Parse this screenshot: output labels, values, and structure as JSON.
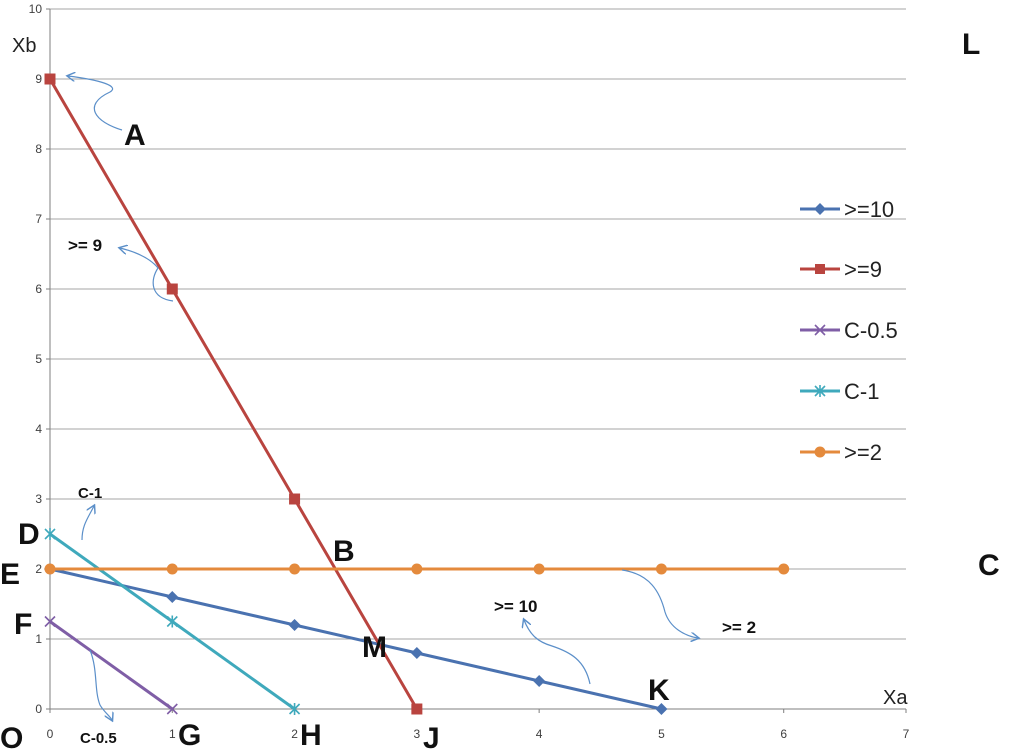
{
  "chart_data": {
    "type": "line",
    "xlabel": "Xa",
    "ylabel": "Xb",
    "xlim": [
      0,
      7
    ],
    "ylim": [
      0,
      10
    ],
    "xticks": [
      "0",
      "1",
      "2",
      "3",
      "4",
      "5",
      "6",
      "7"
    ],
    "yticks": [
      "0",
      "1",
      "2",
      "3",
      "4",
      "5",
      "6",
      "7",
      "8",
      "9",
      "10"
    ],
    "grid": "horizontal",
    "legend_position": "right",
    "series": [
      {
        "name": ">=10",
        "color": "#4a72b0",
        "marker": "diamond",
        "x": [
          0,
          1,
          2,
          3,
          4,
          5
        ],
        "y": [
          2,
          1.6,
          1.2,
          0.8,
          0.4,
          0
        ]
      },
      {
        "name": ">=9",
        "color": "#b9443f",
        "marker": "square",
        "x": [
          0,
          1,
          2,
          3
        ],
        "y": [
          9,
          6,
          3,
          0
        ]
      },
      {
        "name": "C-0.5",
        "color": "#7f5ea6",
        "marker": "x",
        "x": [
          0,
          1
        ],
        "y": [
          1.25,
          0
        ]
      },
      {
        "name": "C-1",
        "color": "#3fa9bc",
        "marker": "star",
        "x": [
          0,
          1,
          2
        ],
        "y": [
          2.5,
          1.25,
          0
        ]
      },
      {
        "name": ">=2",
        "color": "#e48a3c",
        "marker": "circle",
        "x": [
          0,
          1,
          2,
          3,
          4,
          5,
          6
        ],
        "y": [
          2,
          2,
          2,
          2,
          2,
          2,
          2
        ]
      }
    ],
    "point_labels": [
      {
        "text": "A"
      },
      {
        "text": "B"
      },
      {
        "text": "C"
      },
      {
        "text": "D"
      },
      {
        "text": "E"
      },
      {
        "text": "F"
      },
      {
        "text": "G"
      },
      {
        "text": "H"
      },
      {
        "text": "J"
      },
      {
        "text": "K"
      },
      {
        "text": "L"
      },
      {
        "text": "M"
      },
      {
        "text": "O"
      }
    ],
    "annotations": [
      {
        "text": ">= 9"
      },
      {
        "text": "C-1"
      },
      {
        "text": "C-0.5"
      },
      {
        "text": ">= 10"
      },
      {
        "text": ">= 2"
      }
    ]
  }
}
